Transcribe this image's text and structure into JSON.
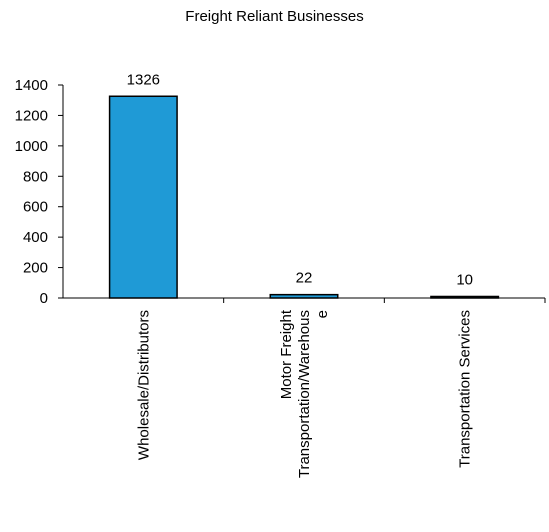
{
  "chart_data": {
    "type": "bar",
    "title": "Freight Reliant Businesses",
    "categories": [
      [
        "Wholesale/Distributors"
      ],
      [
        "Motor Freight",
        "Transportation/Warehous",
        "e"
      ],
      [
        "Transportation Services"
      ]
    ],
    "values": [
      1326,
      22,
      10
    ],
    "data_labels": [
      "1326",
      "22",
      "10"
    ],
    "y_ticks": [
      "0",
      "200",
      "400",
      "600",
      "800",
      "1000",
      "1200",
      "1400"
    ],
    "ylim": [
      0,
      1400
    ],
    "xlabel": "",
    "ylabel": "",
    "grid": false,
    "legend": "none",
    "bar_color": "#1f9ad6",
    "bar_edge_color": "#000000"
  }
}
